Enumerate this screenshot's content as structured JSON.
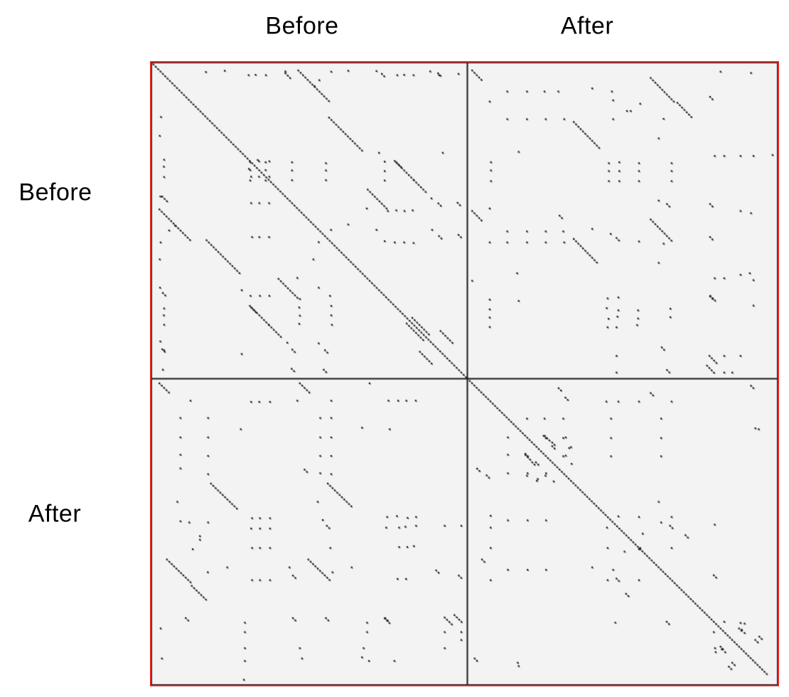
{
  "figure": {
    "top_labels": [
      "Before",
      "After"
    ],
    "side_labels": [
      "Before",
      "After"
    ]
  },
  "chart_data": {
    "type": "scatter",
    "variant": "dotplot-similarity-matrix",
    "x_axis_labels": [
      "Before",
      "After"
    ],
    "y_axis_labels": [
      "Before",
      "After"
    ],
    "axis_ranges": {
      "x": [
        0,
        1
      ],
      "y": [
        0,
        1
      ]
    },
    "grid": false,
    "legend": false,
    "split": {
      "x": 0.504,
      "y": 0.507
    },
    "mark_step": 0.00748,
    "colors": {
      "border": "#e42520",
      "divider": "#161616",
      "frame": "#222222",
      "dot": "#161616",
      "plot_bg": "#f4f3f4",
      "page_bg": "#ffffff",
      "label": "#000000"
    },
    "quadrants": {
      "before_before": {
        "symmetric_mirror": true,
        "features": [
          [
            0.004,
            0.004,
            134
          ],
          [
            0.465,
            0.023,
            14
          ],
          [
            0.563,
            0.173,
            15
          ],
          [
            0.772,
            0.311,
            9
          ],
          [
            0.833,
            0.372,
            6
          ],
          [
            0.686,
            0.402,
            9
          ],
          [
            0.828,
            0.81,
            8
          ],
          [
            0.918,
            0.852,
            6
          ],
          [
            0.171,
            0.028,
            1
          ],
          [
            0.231,
            0.024,
            1
          ],
          [
            0.424,
            0.026,
            1
          ],
          [
            0.424,
            0.032,
            3
          ],
          [
            0.57,
            0.027,
            1
          ],
          [
            0.624,
            0.024,
            1
          ],
          [
            0.714,
            0.025,
            1
          ],
          [
            0.885,
            0.026,
            1
          ],
          [
            0.91,
            0.032,
            2
          ],
          [
            0.975,
            0.034,
            1
          ],
          [
            0.307,
            0.038,
            1
          ],
          [
            0.329,
            0.037,
            1
          ],
          [
            0.362,
            0.038,
            1
          ],
          [
            0.731,
            0.034,
            2
          ],
          [
            0.78,
            0.038,
            1
          ],
          [
            0.802,
            0.037,
            1
          ],
          [
            0.832,
            0.038,
            1
          ],
          [
            0.913,
            0.038,
            1
          ],
          [
            0.532,
            0.054,
            1
          ],
          [
            0.517,
            0.073,
            1
          ],
          [
            0.312,
            0.315,
            1
          ],
          [
            0.312,
            0.34,
            1
          ],
          [
            0.312,
            0.373,
            1
          ],
          [
            0.361,
            0.315,
            1
          ],
          [
            0.361,
            0.34,
            1
          ],
          [
            0.361,
            0.373,
            1
          ],
          [
            0.336,
            0.308,
            1
          ],
          [
            0.445,
            0.315,
            1
          ],
          [
            0.445,
            0.341,
            1
          ],
          [
            0.445,
            0.372,
            1
          ],
          [
            0.553,
            0.318,
            1
          ],
          [
            0.553,
            0.341,
            1
          ],
          [
            0.553,
            0.372,
            1
          ],
          [
            0.722,
            0.285,
            1
          ],
          [
            0.74,
            0.313,
            1
          ],
          [
            0.74,
            0.343,
            1
          ],
          [
            0.74,
            0.373,
            1
          ],
          [
            0.777,
            0.315,
            3
          ],
          [
            0.925,
            0.285,
            1
          ],
          [
            0.683,
            0.462,
            1
          ],
          [
            0.75,
            0.47,
            1
          ],
          [
            0.777,
            0.468,
            1
          ],
          [
            0.803,
            0.47,
            1
          ],
          [
            0.829,
            0.468,
            1
          ],
          [
            0.889,
            0.43,
            1
          ],
          [
            0.911,
            0.446,
            2
          ],
          [
            0.972,
            0.444,
            2
          ],
          [
            0.624,
            0.513,
            1
          ],
          [
            0.569,
            0.53,
            1
          ],
          [
            0.714,
            0.53,
            1
          ],
          [
            0.891,
            0.53,
            1
          ],
          [
            0.913,
            0.55,
            2
          ],
          [
            0.975,
            0.546,
            2
          ],
          [
            0.74,
            0.566,
            1
          ],
          [
            0.772,
            0.57,
            1
          ],
          [
            0.802,
            0.57,
            1
          ],
          [
            0.832,
            0.572,
            1
          ]
        ]
      },
      "after_before": {
        "symmetric_mirror": false,
        "features": [
          [
            0.012,
            0.023,
            5
          ],
          [
            0.592,
            0.047,
            11
          ],
          [
            0.679,
            0.126,
            7
          ],
          [
            0.342,
            0.187,
            12
          ],
          [
            0.012,
            0.47,
            5
          ],
          [
            0.592,
            0.497,
            10
          ],
          [
            0.342,
            0.559,
            11
          ],
          [
            0.783,
            0.931,
            4
          ],
          [
            0.775,
            0.962,
            4
          ],
          [
            0.786,
            0.74,
            3
          ],
          [
            0.126,
            0.09,
            1
          ],
          [
            0.19,
            0.09,
            1
          ],
          [
            0.247,
            0.09,
            1
          ],
          [
            0.292,
            0.09,
            1
          ],
          [
            0.402,
            0.08,
            1
          ],
          [
            0.466,
            0.09,
            1
          ],
          [
            0.069,
            0.122,
            1
          ],
          [
            0.47,
            0.118,
            1
          ],
          [
            0.515,
            0.152,
            1
          ],
          [
            0.527,
            0.152,
            1
          ],
          [
            0.558,
            0.129,
            1
          ],
          [
            0.634,
            0.177,
            1
          ],
          [
            0.819,
            0.027,
            1
          ],
          [
            0.918,
            0.031,
            1
          ],
          [
            0.785,
            0.107,
            2
          ],
          [
            0.126,
            0.178,
            1
          ],
          [
            0.19,
            0.178,
            1
          ],
          [
            0.251,
            0.178,
            1
          ],
          [
            0.311,
            0.178,
            1
          ],
          [
            0.47,
            0.178,
            1
          ],
          [
            0.163,
            0.282,
            1
          ],
          [
            0.073,
            0.315,
            1
          ],
          [
            0.073,
            0.341,
            1
          ],
          [
            0.073,
            0.375,
            1
          ],
          [
            0.456,
            0.318,
            1
          ],
          [
            0.49,
            0.315,
            1
          ],
          [
            0.456,
            0.343,
            1
          ],
          [
            0.49,
            0.343,
            1
          ],
          [
            0.456,
            0.375,
            1
          ],
          [
            0.49,
            0.375,
            1
          ],
          [
            0.554,
            0.318,
            1
          ],
          [
            0.554,
            0.343,
            1
          ],
          [
            0.554,
            0.375,
            1
          ],
          [
            0.66,
            0.318,
            1
          ],
          [
            0.66,
            0.343,
            1
          ],
          [
            0.66,
            0.375,
            1
          ],
          [
            0.8,
            0.295,
            1
          ],
          [
            0.831,
            0.295,
            1
          ],
          [
            0.884,
            0.295,
            1
          ],
          [
            0.926,
            0.295,
            1
          ],
          [
            0.988,
            0.292,
            1
          ],
          [
            0.618,
            0.239,
            1
          ],
          [
            0.069,
            0.462,
            1
          ],
          [
            0.296,
            0.485,
            2
          ],
          [
            0.402,
            0.527,
            1
          ],
          [
            0.618,
            0.437,
            1
          ],
          [
            0.645,
            0.448,
            2
          ],
          [
            0.785,
            0.448,
            2
          ],
          [
            0.884,
            0.47,
            1
          ],
          [
            0.918,
            0.477,
            1
          ],
          [
            0.126,
            0.535,
            1
          ],
          [
            0.19,
            0.535,
            1
          ],
          [
            0.251,
            0.535,
            1
          ],
          [
            0.308,
            0.535,
            1
          ],
          [
            0.069,
            0.57,
            1
          ],
          [
            0.126,
            0.57,
            1
          ],
          [
            0.19,
            0.57,
            1
          ],
          [
            0.251,
            0.57,
            1
          ],
          [
            0.311,
            0.57,
            1
          ],
          [
            0.462,
            0.543,
            1
          ],
          [
            0.481,
            0.556,
            2
          ],
          [
            0.554,
            0.567,
            1
          ],
          [
            0.634,
            0.574,
            1
          ],
          [
            0.785,
            0.553,
            2
          ],
          [
            0.618,
            0.635,
            1
          ],
          [
            0.158,
            0.668,
            1
          ],
          [
            0.012,
            0.692,
            1
          ],
          [
            0.8,
            0.684,
            1
          ],
          [
            0.831,
            0.684,
            1
          ],
          [
            0.884,
            0.673,
            1
          ],
          [
            0.914,
            0.668,
            1
          ],
          [
            0.926,
            0.69,
            1
          ],
          [
            0.926,
            0.771,
            1
          ],
          [
            0.785,
            0.742,
            2
          ],
          [
            0.069,
            0.752,
            1
          ],
          [
            0.069,
            0.783,
            1
          ],
          [
            0.069,
            0.809,
            1
          ],
          [
            0.069,
            0.839,
            1
          ],
          [
            0.163,
            0.756,
            1
          ],
          [
            0.452,
            0.748,
            1
          ],
          [
            0.487,
            0.745,
            1
          ],
          [
            0.449,
            0.779,
            1
          ],
          [
            0.487,
            0.786,
            1
          ],
          [
            0.455,
            0.813,
            1
          ],
          [
            0.484,
            0.806,
            1
          ],
          [
            0.452,
            0.84,
            1
          ],
          [
            0.481,
            0.84,
            1
          ],
          [
            0.551,
            0.786,
            1
          ],
          [
            0.551,
            0.812,
            1
          ],
          [
            0.548,
            0.833,
            1
          ],
          [
            0.656,
            0.781,
            1
          ],
          [
            0.656,
            0.808,
            1
          ],
          [
            0.481,
            0.931,
            1
          ],
          [
            0.481,
            0.984,
            1
          ],
          [
            0.628,
            0.904,
            2
          ],
          [
            0.645,
            0.976,
            2
          ],
          [
            0.831,
            0.931,
            1
          ],
          [
            0.884,
            0.931,
            1
          ],
          [
            0.831,
            0.984,
            1
          ],
          [
            0.857,
            0.984,
            1
          ]
        ]
      },
      "before_after": {
        "transpose_of": "after_before"
      },
      "after_after": {
        "symmetric_mirror": true,
        "features": [
          [
            0.004,
            0.004,
            130
          ],
          [
            0.879,
            0.819,
            2
          ],
          [
            0.932,
            0.857,
            2
          ],
          [
            0.945,
            0.846,
            2
          ],
          [
            0.293,
            0.028,
            2
          ],
          [
            0.315,
            0.059,
            2
          ],
          [
            0.592,
            0.044,
            2
          ],
          [
            0.448,
            0.072,
            1
          ],
          [
            0.487,
            0.072,
            1
          ],
          [
            0.554,
            0.072,
            1
          ],
          [
            0.66,
            0.072,
            1
          ],
          [
            0.19,
            0.128,
            1
          ],
          [
            0.247,
            0.128,
            1
          ],
          [
            0.308,
            0.128,
            1
          ],
          [
            0.463,
            0.128,
            1
          ],
          [
            0.626,
            0.128,
            1
          ],
          [
            0.918,
            0.02,
            2
          ],
          [
            0.932,
            0.16,
            1
          ],
          [
            0.943,
            0.163,
            1
          ],
          [
            0.244,
            0.185,
            2
          ],
          [
            0.308,
            0.192,
            1
          ],
          [
            0.463,
            0.192,
            1
          ],
          [
            0.626,
            0.192,
            1
          ],
          [
            0.272,
            0.219,
            2
          ],
          [
            0.327,
            0.225,
            1
          ],
          [
            0.185,
            0.248,
            3
          ],
          [
            0.308,
            0.252,
            1
          ],
          [
            0.463,
            0.252,
            1
          ],
          [
            0.626,
            0.252,
            1
          ],
          [
            0.207,
            0.272,
            2
          ],
          [
            0.222,
            0.333,
            1
          ],
          [
            0.19,
            0.316,
            1
          ],
          [
            0.25,
            0.316,
            1
          ],
          [
            0.277,
            0.335,
            1
          ],
          [
            0.618,
            0.402,
            1
          ],
          [
            0.487,
            0.45,
            1
          ],
          [
            0.554,
            0.452,
            1
          ],
          [
            0.66,
            0.452,
            1
          ],
          [
            0.626,
            0.47,
            1
          ],
          [
            0.655,
            0.481,
            2
          ],
          [
            0.8,
            0.477,
            1
          ],
          [
            0.566,
            0.507,
            1
          ],
          [
            0.705,
            0.512,
            2
          ],
          [
            0.554,
            0.558,
            1
          ],
          [
            0.66,
            0.554,
            1
          ],
          [
            0.797,
            0.644,
            2
          ],
          [
            0.884,
            0.801,
            1
          ],
          [
            0.831,
            0.797,
            1
          ],
          [
            0.888,
            0.823,
            1
          ],
          [
            0.897,
            0.803,
            1
          ],
          [
            0.897,
            0.834,
            1
          ]
        ]
      }
    }
  }
}
